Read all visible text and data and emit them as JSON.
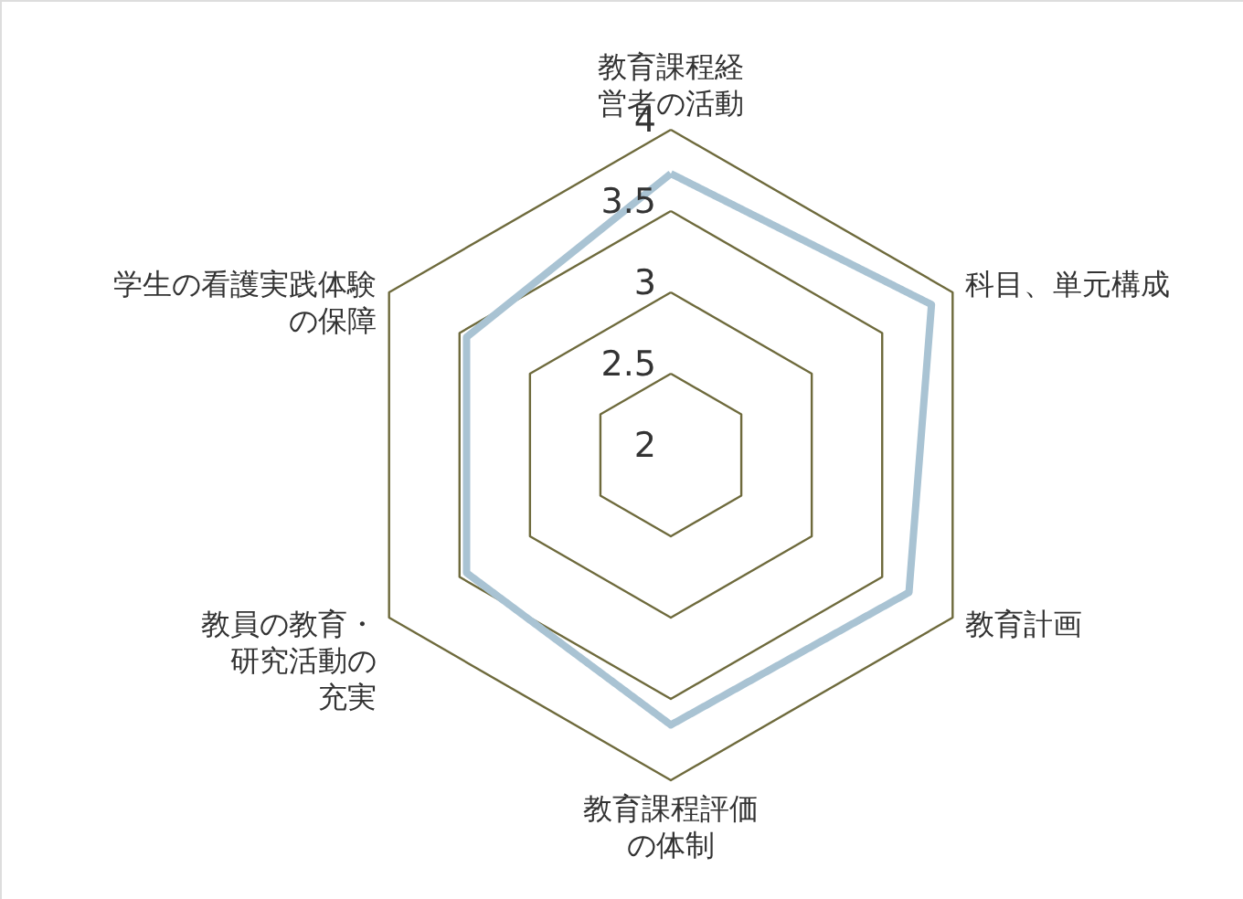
{
  "chart_data": {
    "type": "radar",
    "categories": [
      "教育課程経営者の活動",
      "科目、単元構成",
      "教育計画",
      "教育課程評価の体制",
      "教員の教育・研究活動の充実",
      "学生の看護実践体験の保障"
    ],
    "series": [
      {
        "color": "#a9c3d3",
        "values": [
          3.73,
          3.85,
          3.69,
          3.66,
          3.45,
          3.45
        ]
      }
    ],
    "ylim": [
      2,
      4
    ],
    "yticks": [
      2,
      2.5,
      3,
      3.5,
      4
    ],
    "grid": true,
    "marker": "none",
    "line_style": "solid"
  }
}
